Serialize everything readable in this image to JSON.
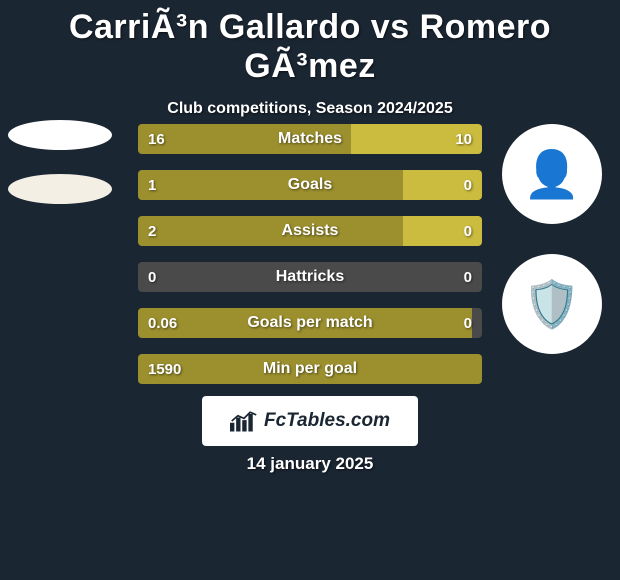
{
  "title": "CarriÃ³n Gallardo vs Romero GÃ³mez",
  "subtitle": "Club competitions, Season 2024/2025",
  "date": "14 january 2025",
  "logo_text": "FcTables.com",
  "colors": {
    "background": "#1b2633",
    "bar_bg": "#4a4a4a",
    "left_bar": "#9b8f2e",
    "right_bar": "#cbbb3f",
    "text": "#ffffff",
    "logo_bg": "#ffffff"
  },
  "left_ovals": [
    {
      "color": "#ffffff"
    },
    {
      "color": "#f3efe5"
    }
  ],
  "right_circles": [
    {
      "bg": "#ffffff",
      "icon": "player-icon",
      "emoji": "👤",
      "emoji_color": "#6b4a3a"
    },
    {
      "bg": "#ffffff",
      "icon": "club-crest-icon",
      "emoji": "🛡️",
      "emoji_color": "#1b2633"
    }
  ],
  "bars": [
    {
      "label": "Matches",
      "left_val": "16",
      "right_val": "10",
      "left_pct": 62,
      "right_pct": 38
    },
    {
      "label": "Goals",
      "left_val": "1",
      "right_val": "0",
      "left_pct": 77,
      "right_pct": 23
    },
    {
      "label": "Assists",
      "left_val": "2",
      "right_val": "0",
      "left_pct": 77,
      "right_pct": 23
    },
    {
      "label": "Hattricks",
      "left_val": "0",
      "right_val": "0",
      "left_pct": 0,
      "right_pct": 0
    },
    {
      "label": "Goals per match",
      "left_val": "0.06",
      "right_val": "0",
      "left_pct": 97,
      "right_pct": 0
    },
    {
      "label": "Min per goal",
      "left_val": "1590",
      "right_val": "",
      "left_pct": 100,
      "right_pct": 0
    }
  ]
}
